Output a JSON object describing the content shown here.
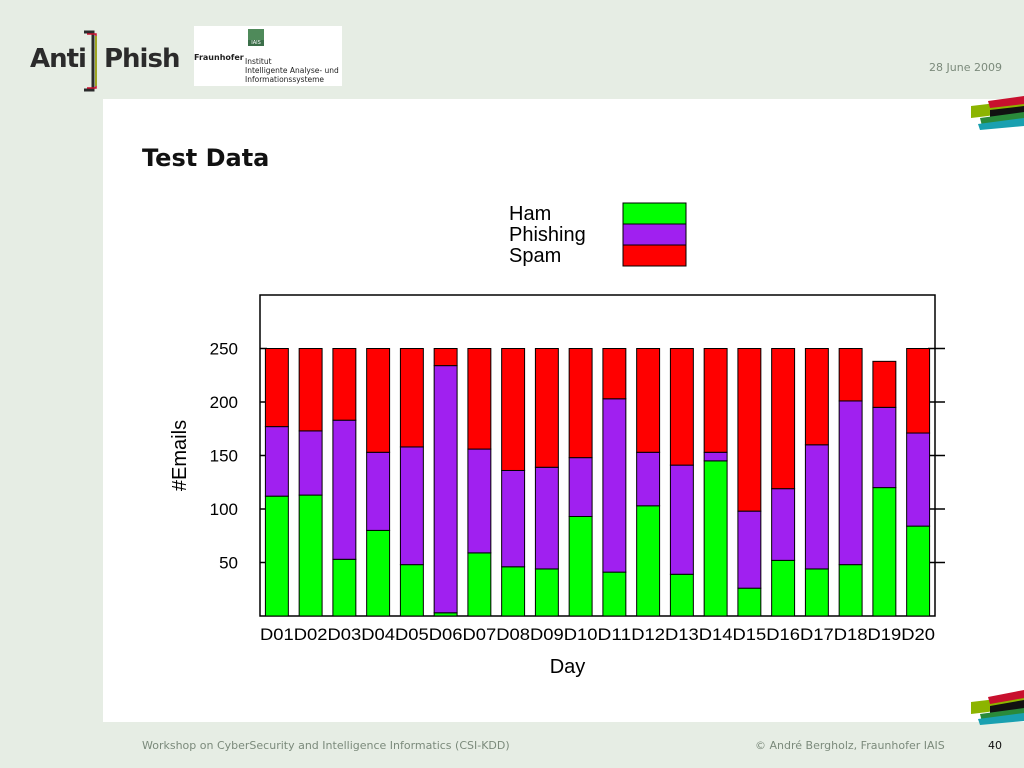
{
  "header": {
    "logo_left": "Anti",
    "logo_right": "Phish",
    "org_name": "Fraunhofer",
    "org_badge": "IAIS",
    "org_institute": [
      "Institut",
      "Intelligente Analyse- und",
      "Informationssysteme"
    ],
    "date": "28 June 2009"
  },
  "slide": {
    "title": "Test Data"
  },
  "footer": {
    "left": "Workshop on CyberSecurity and Intelligence Informatics (CSI-KDD)",
    "right": "© André Bergholz, Fraunhofer IAIS",
    "page": "40"
  },
  "colors": {
    "ham": "#00ff00",
    "phishing": "#a020f0",
    "spam": "#ff0000",
    "accent_green": "#8cb400",
    "accent_red": "#c8102e"
  },
  "chart_data": {
    "type": "bar",
    "stacked": true,
    "title": "",
    "xlabel": "Day",
    "ylabel": "#Emails",
    "ylim": [
      0,
      300
    ],
    "yticks": [
      50,
      100,
      150,
      200,
      250
    ],
    "legend_position": "top",
    "categories": [
      "D01",
      "D02",
      "D03",
      "D04",
      "D05",
      "D06",
      "D07",
      "D08",
      "D09",
      "D10",
      "D11",
      "D12",
      "D13",
      "D14",
      "D15",
      "D16",
      "D17",
      "D18",
      "D19",
      "D20"
    ],
    "series": [
      {
        "name": "Ham",
        "color": "#00ff00",
        "values": [
          112,
          113,
          53,
          80,
          48,
          3,
          59,
          46,
          44,
          93,
          41,
          103,
          39,
          145,
          26,
          52,
          44,
          48,
          120,
          84
        ]
      },
      {
        "name": "Phishing",
        "color": "#a020f0",
        "values": [
          65,
          60,
          130,
          73,
          110,
          231,
          97,
          90,
          95,
          55,
          162,
          50,
          102,
          8,
          72,
          67,
          116,
          153,
          75,
          87
        ]
      },
      {
        "name": "Spam",
        "color": "#ff0000",
        "values": [
          73,
          77,
          67,
          97,
          92,
          16,
          94,
          114,
          111,
          102,
          47,
          97,
          109,
          97,
          152,
          131,
          90,
          49,
          43,
          79
        ]
      }
    ]
  }
}
